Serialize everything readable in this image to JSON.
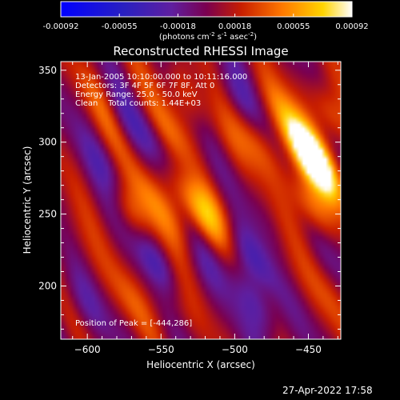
{
  "chart_data": {
    "type": "heatmap",
    "title": "Reconstructed RHESSI Image",
    "xlabel": "Heliocentric X (arcsec)",
    "ylabel": "Heliocentric Y (arcsec)",
    "xlim": [
      -618,
      -428
    ],
    "ylim": [
      163,
      356
    ],
    "x_ticks": [
      -600,
      -550,
      -500,
      -450
    ],
    "y_ticks": [
      200,
      250,
      300,
      350
    ],
    "colorbar": {
      "min": -0.00092,
      "max": 0.00092,
      "ticks": [
        "-0.00092",
        "-0.00055",
        "-0.00018",
        "0.00018",
        "0.00055",
        "0.00092"
      ],
      "tick_values": [
        -0.00092,
        -0.00055,
        -0.00018,
        0.00018,
        0.00055,
        0.00092
      ],
      "unit_main": "(photons cm",
      "unit_exp1": "-2",
      "unit_mid": " s",
      "unit_exp2": "-1",
      "unit_end": " asec",
      "unit_exp3": "-2",
      "unit_close": ")"
    },
    "annotations": [
      "13-Jan-2005 10:10:00.000 to 10:11:16.000",
      "Detectors: 3F 4F 5F 6F 7F 8F, Att 0",
      "Energy Range: 25.0 - 50.0 keV",
      "Clean    Total counts: 1.44E+03"
    ],
    "peak_label": "Position of Peak = [-444,286]",
    "peak": {
      "x": -444,
      "y": 286
    },
    "features": [
      {
        "x": -590,
        "y": 330,
        "v": 0.35
      },
      {
        "x": -578,
        "y": 305,
        "v": 0.2
      },
      {
        "x": -570,
        "y": 250,
        "v": 0.45
      },
      {
        "x": -557,
        "y": 262,
        "v": 0.35
      },
      {
        "x": -545,
        "y": 305,
        "v": 0.4
      },
      {
        "x": -540,
        "y": 270,
        "v": 0.35
      },
      {
        "x": -536,
        "y": 238,
        "v": 0.3
      },
      {
        "x": -522,
        "y": 248,
        "v": 0.5
      },
      {
        "x": -532,
        "y": 335,
        "v": 0.4
      },
      {
        "x": -515,
        "y": 255,
        "v": 0.3
      },
      {
        "x": -505,
        "y": 300,
        "v": 0.2
      },
      {
        "x": -485,
        "y": 300,
        "v": 0.35
      },
      {
        "x": -470,
        "y": 325,
        "v": 0.35
      },
      {
        "x": -455,
        "y": 295,
        "v": 0.7
      },
      {
        "x": -444,
        "y": 286,
        "v": 1.0
      },
      {
        "x": -448,
        "y": 255,
        "v": 0.7
      },
      {
        "x": -436,
        "y": 320,
        "v": 0.55
      },
      {
        "x": -570,
        "y": 190,
        "v": 0.25
      },
      {
        "x": -545,
        "y": 190,
        "v": 0.25
      },
      {
        "x": -470,
        "y": 215,
        "v": 0.2
      },
      {
        "x": -435,
        "y": 190,
        "v": 0.2
      },
      {
        "x": -612,
        "y": 240,
        "v": 0.15
      },
      {
        "x": -600,
        "y": 215,
        "v": 0.1
      },
      {
        "x": -560,
        "y": 340,
        "v": 0.1
      },
      {
        "x": -580,
        "y": 320,
        "v": -0.35
      },
      {
        "x": -585,
        "y": 280,
        "v": -0.3
      },
      {
        "x": -555,
        "y": 300,
        "v": -0.3
      },
      {
        "x": -530,
        "y": 280,
        "v": -0.2
      },
      {
        "x": -520,
        "y": 220,
        "v": -0.25
      },
      {
        "x": -555,
        "y": 220,
        "v": -0.45
      },
      {
        "x": -488,
        "y": 220,
        "v": -0.55
      },
      {
        "x": -483,
        "y": 185,
        "v": -0.45
      },
      {
        "x": -498,
        "y": 330,
        "v": -0.3
      },
      {
        "x": -605,
        "y": 190,
        "v": -0.25
      },
      {
        "x": -440,
        "y": 230,
        "v": -0.15
      }
    ]
  },
  "footer_timestamp": "27-Apr-2022 17:58"
}
